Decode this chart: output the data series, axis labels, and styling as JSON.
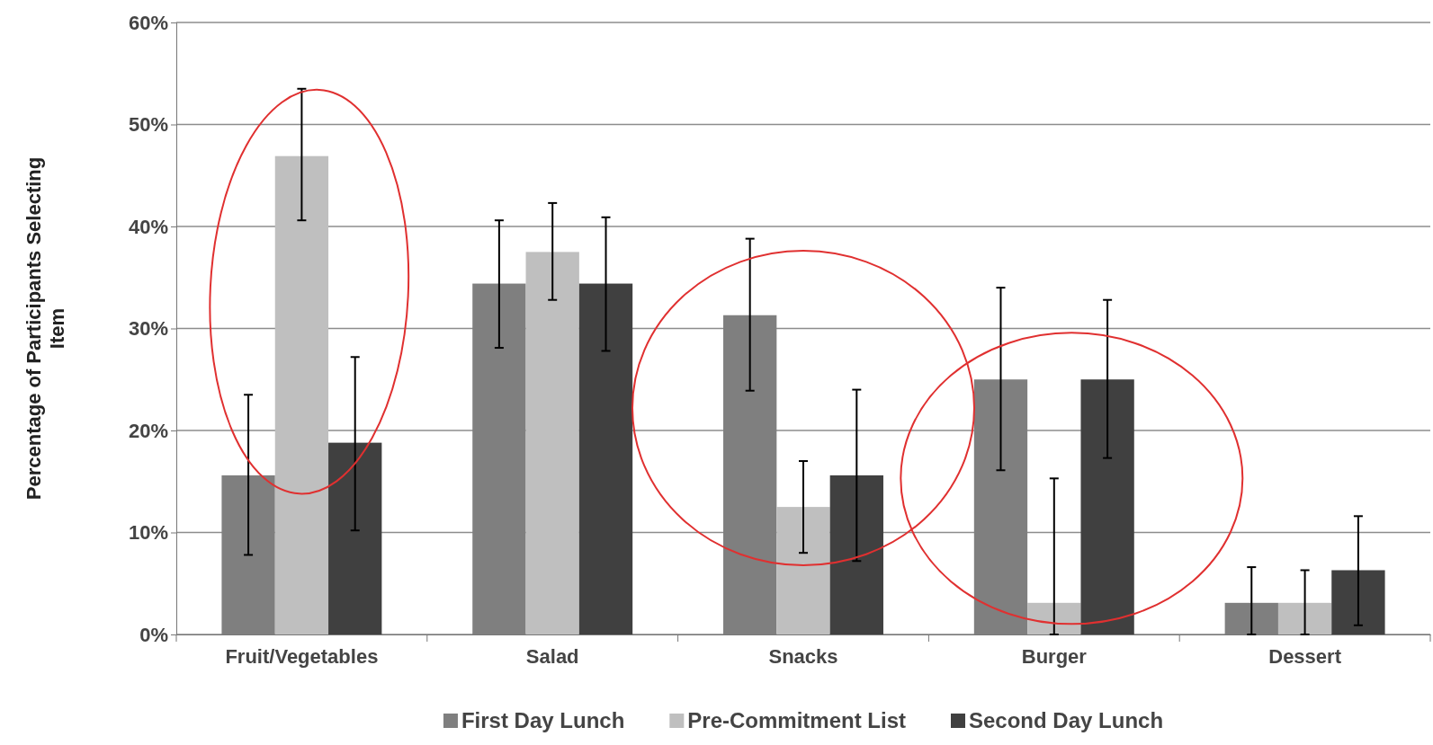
{
  "chart_data": {
    "type": "bar",
    "ylabel": "Percentage of Participants Selecting Item",
    "categories": [
      "Fruit/Vegetables",
      "Salad",
      "Snacks",
      "Burger",
      "Dessert"
    ],
    "series": [
      {
        "name": "First Day Lunch",
        "color": "#7f7f7f",
        "values": [
          15.6,
          34.4,
          31.3,
          25,
          3.1
        ],
        "errors": [
          [
            7.8,
            23.5
          ],
          [
            28.1,
            40.6
          ],
          [
            23.9,
            38.8
          ],
          [
            16.1,
            34
          ],
          [
            0,
            6.6
          ]
        ]
      },
      {
        "name": "Pre-Commitment List",
        "color": "#bfbfbf",
        "values": [
          46.9,
          37.5,
          12.5,
          3.1,
          3.1
        ],
        "errors": [
          [
            40.6,
            53.5
          ],
          [
            32.8,
            42.3
          ],
          [
            8,
            17
          ],
          [
            0,
            15.3
          ],
          [
            0,
            6.3
          ]
        ]
      },
      {
        "name": "Second Day Lunch",
        "color": "#404040",
        "values": [
          18.8,
          34.4,
          15.6,
          25,
          6.3
        ],
        "errors": [
          [
            10.2,
            27.2
          ],
          [
            27.8,
            40.9
          ],
          [
            7.2,
            24
          ],
          [
            17.3,
            32.8
          ],
          [
            0.9,
            11.6
          ]
        ]
      }
    ],
    "ylim": [
      0,
      60
    ],
    "yticks": [
      {
        "value": 0,
        "label": "0%"
      },
      {
        "value": 10,
        "label": "10%"
      },
      {
        "value": 20,
        "label": "20%"
      },
      {
        "value": 30,
        "label": "30%"
      },
      {
        "value": 40,
        "label": "40%"
      },
      {
        "value": 50,
        "label": "50%"
      },
      {
        "value": 60,
        "label": "60%"
      }
    ],
    "grid": "y",
    "legend": "bottom"
  }
}
